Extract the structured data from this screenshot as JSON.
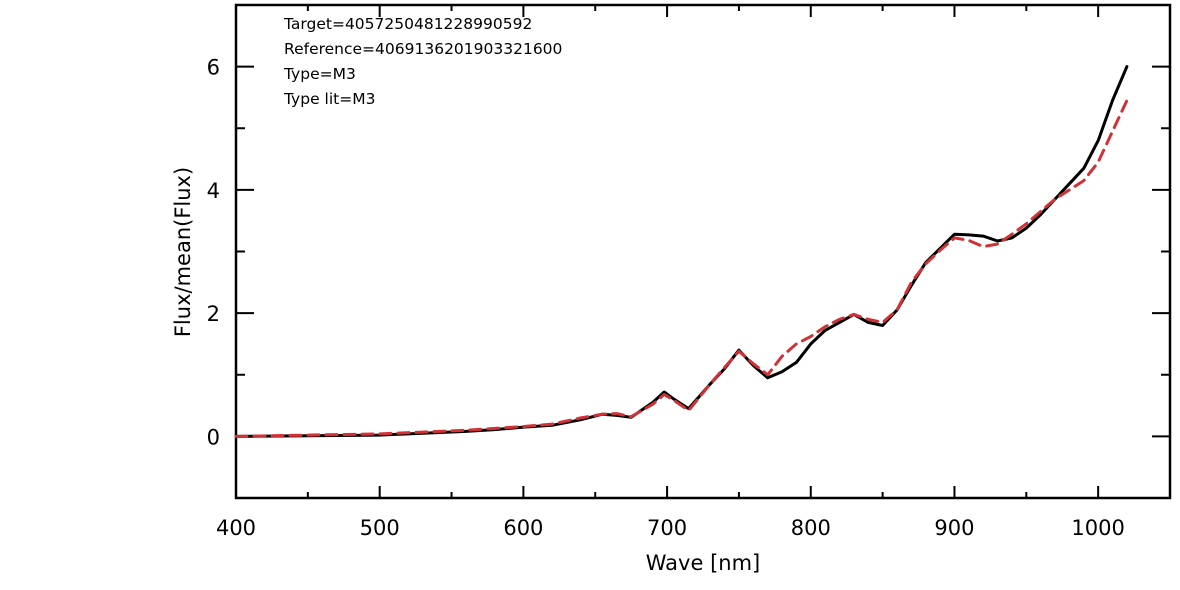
{
  "chart_data": {
    "type": "line",
    "xlabel": "Wave [nm]",
    "ylabel": "Flux/mean(Flux)",
    "xlim": [
      400,
      1050
    ],
    "ylim": [
      -1,
      7
    ],
    "x_ticks": [
      400,
      500,
      600,
      700,
      800,
      900,
      1000
    ],
    "y_ticks": [
      0,
      2,
      4,
      6
    ],
    "grid": false,
    "annotations": [
      "Target=4057250481228990592",
      "Reference=4069136201903321600",
      "Type=M3",
      "Type lit=M3"
    ],
    "series": [
      {
        "style": "solid",
        "color": "#000000",
        "x": [
          400,
          450,
          500,
          530,
          560,
          580,
          600,
          620,
          640,
          655,
          665,
          675,
          690,
          698,
          705,
          715,
          730,
          740,
          750,
          760,
          770,
          780,
          790,
          800,
          810,
          820,
          830,
          840,
          850,
          860,
          870,
          880,
          890,
          900,
          910,
          920,
          930,
          940,
          950,
          960,
          970,
          980,
          990,
          1000,
          1010,
          1020
        ],
        "values": [
          0,
          0.01,
          0.02,
          0.05,
          0.08,
          0.11,
          0.15,
          0.18,
          0.27,
          0.36,
          0.34,
          0.31,
          0.55,
          0.72,
          0.6,
          0.45,
          0.85,
          1.1,
          1.4,
          1.15,
          0.95,
          1.05,
          1.2,
          1.5,
          1.72,
          1.85,
          1.98,
          1.85,
          1.8,
          2.05,
          2.45,
          2.82,
          3.05,
          3.28,
          3.27,
          3.25,
          3.17,
          3.22,
          3.38,
          3.6,
          3.85,
          4.1,
          4.35,
          4.8,
          5.45,
          6.0
        ]
      },
      {
        "style": "dashed",
        "color": "#d03236",
        "x": [
          400,
          450,
          500,
          530,
          560,
          580,
          600,
          620,
          640,
          655,
          665,
          675,
          690,
          698,
          705,
          715,
          730,
          740,
          750,
          760,
          770,
          780,
          790,
          800,
          810,
          820,
          830,
          840,
          850,
          860,
          870,
          880,
          890,
          900,
          910,
          920,
          930,
          940,
          950,
          960,
          970,
          980,
          990,
          1000,
          1010,
          1020
        ],
        "values": [
          0,
          0.02,
          0.04,
          0.07,
          0.1,
          0.13,
          0.16,
          0.2,
          0.3,
          0.36,
          0.37,
          0.32,
          0.52,
          0.68,
          0.58,
          0.42,
          0.85,
          1.12,
          1.38,
          1.18,
          1.0,
          1.3,
          1.5,
          1.62,
          1.78,
          1.9,
          1.98,
          1.9,
          1.85,
          2.05,
          2.5,
          2.8,
          3.02,
          3.22,
          3.18,
          3.08,
          3.12,
          3.28,
          3.45,
          3.65,
          3.85,
          4.0,
          4.15,
          4.45,
          4.95,
          5.45
        ]
      }
    ]
  }
}
